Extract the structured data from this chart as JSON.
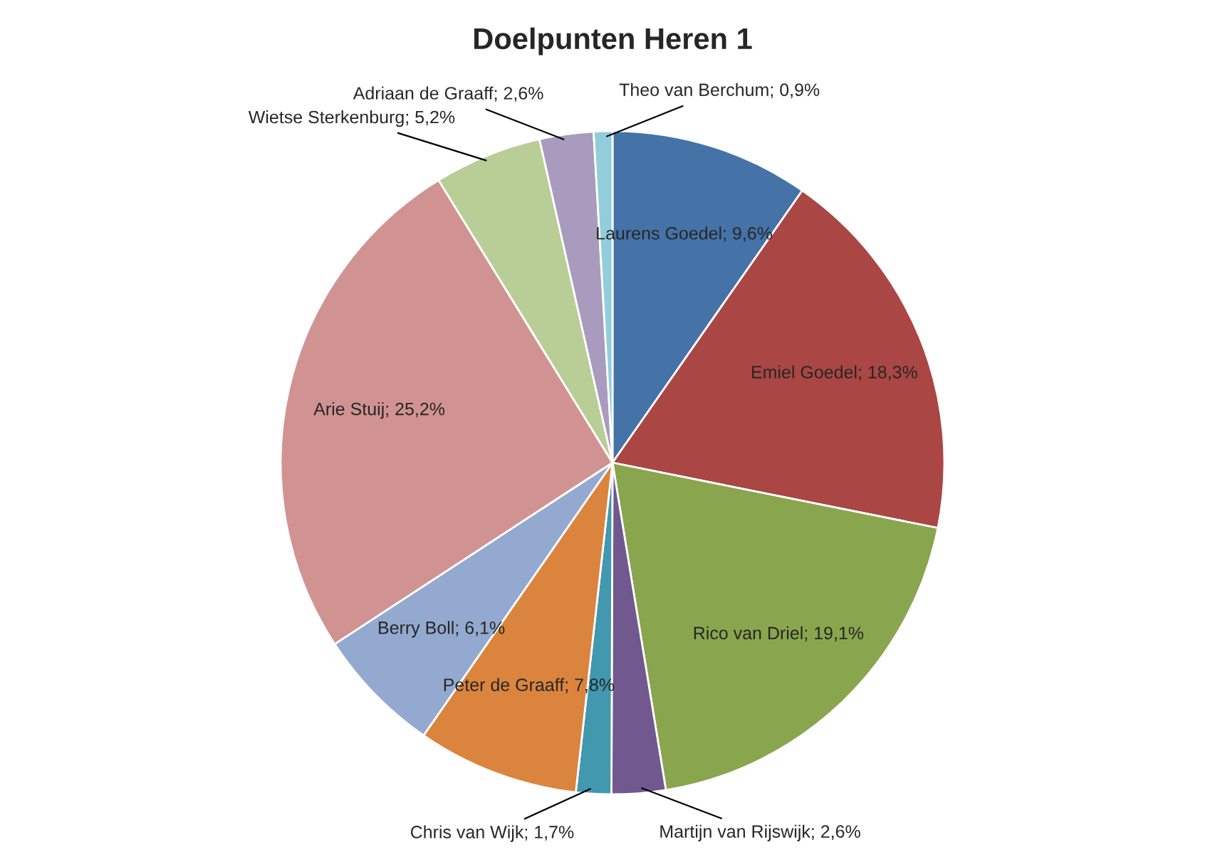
{
  "chart_data": {
    "type": "pie",
    "title": "Doelpunten Heren 1",
    "categories": [
      "Laurens Goedel",
      "Emiel Goedel",
      "Rico van Driel",
      "Martijn van Rijswijk",
      "Chris van Wijk",
      "Peter de Graaff",
      "Berry Boll",
      "Arie Stuij",
      "Wietse Sterkenburg",
      "Adriaan de Graaff",
      "Theo van Berchum"
    ],
    "values": [
      9.6,
      18.3,
      19.1,
      2.6,
      1.7,
      7.8,
      6.1,
      25.2,
      5.2,
      2.6,
      0.9
    ],
    "value_labels": [
      "9,6%",
      "18,3%",
      "19,1%",
      "2,6%",
      "1,7%",
      "7,8%",
      "6,1%",
      "25,2%",
      "5,2%",
      "2,6%",
      "0,9%"
    ],
    "colors": [
      "#4572a7",
      "#aa4643",
      "#89a54e",
      "#71588f",
      "#4198af",
      "#db843d",
      "#93a9cf",
      "#d19392",
      "#b9cd96",
      "#a99bbd",
      "#92cddc"
    ],
    "legend": false
  }
}
